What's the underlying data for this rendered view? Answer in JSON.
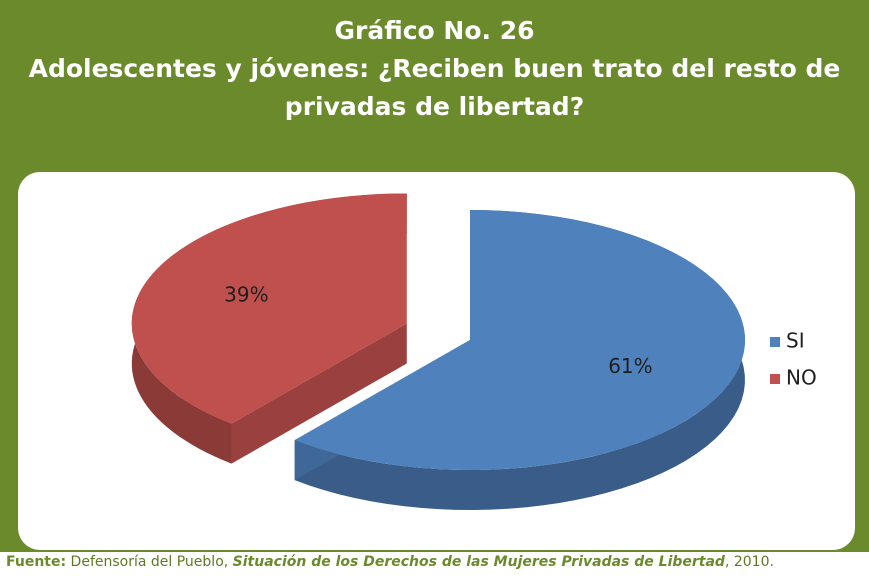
{
  "chart_data": {
    "type": "pie",
    "title": "Gráfico No. 26",
    "subtitle": "Adolescentes y jóvenes: ¿Reciben buen trato del resto de privadas de libertad?",
    "categories": [
      "SI",
      "NO"
    ],
    "values": [
      61,
      39
    ],
    "value_labels": [
      "61%",
      "39%"
    ],
    "colors": [
      "#4f81bd",
      "#c0504d"
    ],
    "legend": "right",
    "source": {
      "label": "Fuente:",
      "author": "Defensoría del Pueblo,",
      "work": "Situación de los Derechos de las Mujeres Privadas de Libertad",
      "year": ", 2010."
    }
  }
}
